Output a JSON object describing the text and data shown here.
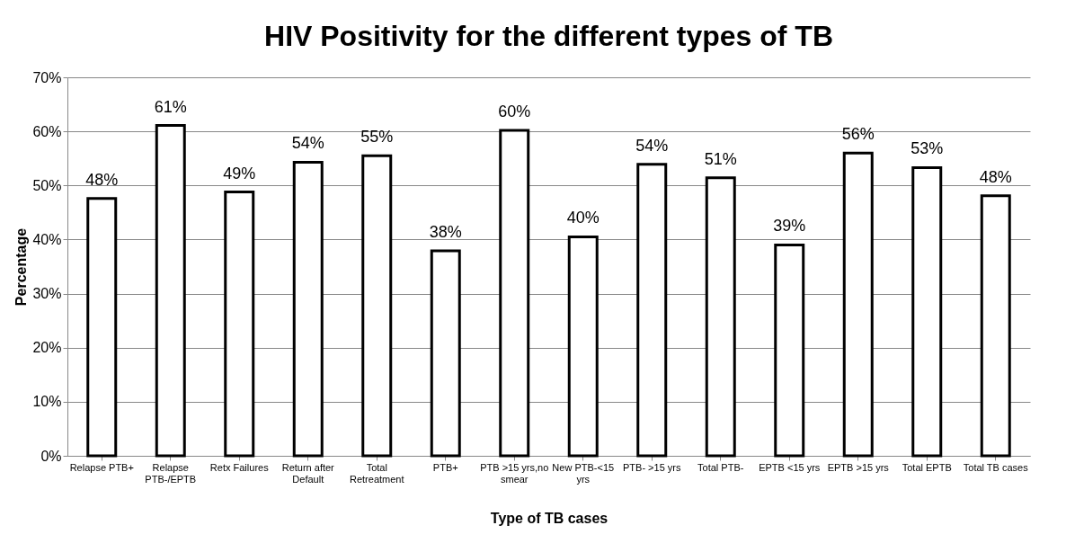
{
  "chart_data": {
    "type": "bar",
    "title": "HIV Positivity for the different types of TB",
    "xlabel": "Type of TB cases",
    "ylabel": "Percentage",
    "categories": [
      "Relapse PTB+",
      "Relapse PTB-/EPTB",
      "Retx Failures",
      "Return after Default",
      "Total Retreatment",
      "PTB+",
      "PTB >15 yrs,no smear",
      "New PTB-<15 yrs",
      "PTB- >15 yrs",
      "Total PTB-",
      "EPTB <15 yrs",
      "EPTB >15 yrs",
      "Total EPTB",
      "Total TB cases"
    ],
    "values": [
      47.6,
      61.1,
      48.8,
      54.3,
      55.5,
      37.9,
      60.2,
      40.5,
      53.9,
      51.4,
      39.0,
      56.0,
      53.3,
      48.1
    ],
    "value_labels": [
      "48%",
      "61%",
      "49%",
      "54%",
      "55%",
      "38%",
      "60%",
      "40%",
      "54%",
      "51%",
      "39%",
      "56%",
      "53%",
      "48%"
    ],
    "color": "#ffffff",
    "grid": "y",
    "ylim": [
      0,
      70
    ],
    "yticks": [
      {
        "value": 0,
        "label": "0%"
      },
      {
        "value": 10,
        "label": "10%"
      },
      {
        "value": 20,
        "label": "20%"
      },
      {
        "value": 30,
        "label": "30%"
      },
      {
        "value": 40,
        "label": "40%"
      },
      {
        "value": 50,
        "label": "50%"
      },
      {
        "value": 60,
        "label": "60%"
      },
      {
        "value": 70,
        "label": "70%"
      }
    ]
  }
}
